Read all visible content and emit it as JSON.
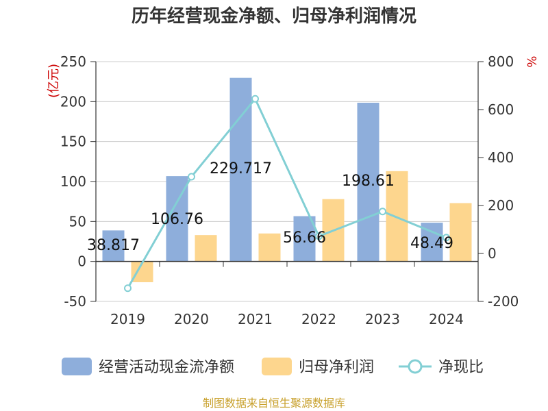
{
  "chart_data": {
    "type": "bar",
    "title": "历年经营现金净额、归母净利润情况",
    "categories": [
      "2019",
      "2020",
      "2021",
      "2022",
      "2023",
      "2024"
    ],
    "series": [
      {
        "name": "经营活动现金流净额",
        "kind": "bar",
        "axis": "left",
        "color": "#8eaedb",
        "values": [
          38.817,
          106.76,
          229.717,
          56.66,
          198.61,
          48.49
        ],
        "labels": [
          "38.817",
          "106.76",
          "229.717",
          "56.66",
          "198.61",
          "48.49"
        ]
      },
      {
        "name": "归母净利润",
        "kind": "bar",
        "axis": "left",
        "color": "#fdd68e",
        "values": [
          -26,
          33,
          35,
          78,
          113,
          73
        ]
      },
      {
        "name": "净现比",
        "kind": "line",
        "axis": "right",
        "color": "#82cfd4",
        "values": [
          -145,
          320,
          645,
          72,
          175,
          66
        ]
      }
    ],
    "y_left": {
      "unit": "(亿元)",
      "ylim": [
        -50,
        250
      ],
      "ticks": [
        -50,
        0,
        50,
        100,
        150,
        200,
        250
      ]
    },
    "y_right": {
      "unit": "%",
      "ylim": [
        -200,
        800
      ],
      "ticks": [
        -200,
        0,
        200,
        400,
        600,
        800
      ]
    },
    "legend_position": "bottom",
    "grid": true
  },
  "footer": {
    "source": "制图数据来自恒生聚源数据库"
  }
}
